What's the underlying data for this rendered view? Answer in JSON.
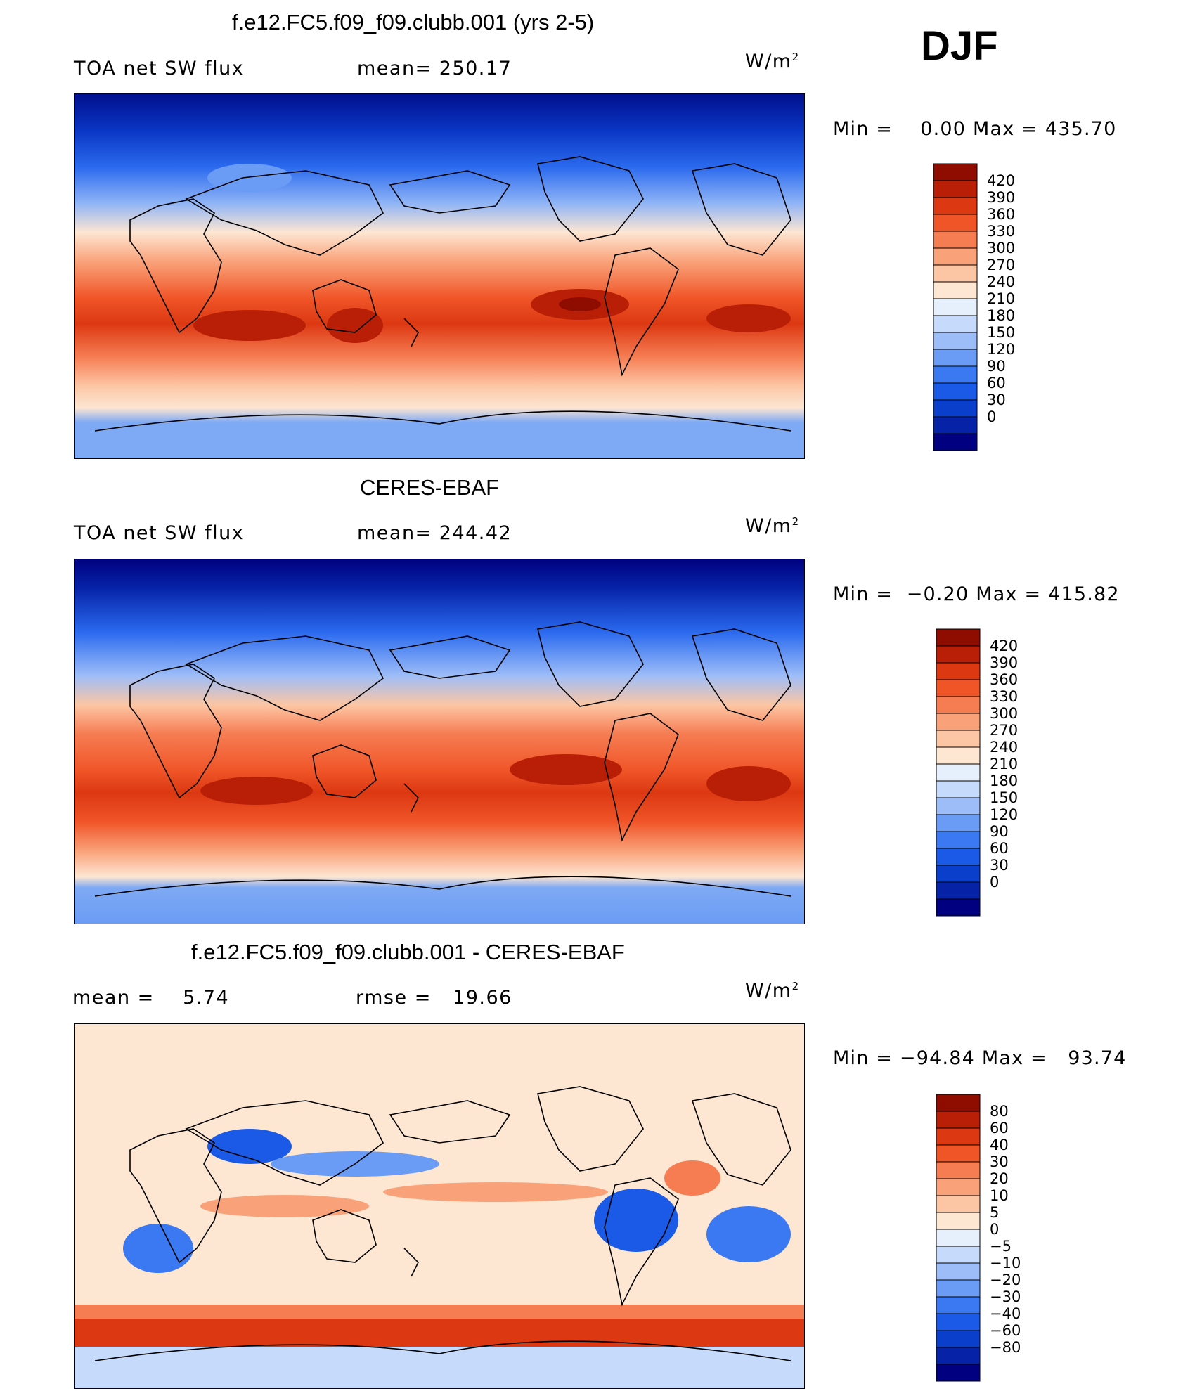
{
  "season": "DJF",
  "colors": {
    "abs_scale": [
      "#000080",
      "#0623a8",
      "#0a3fcc",
      "#1a5ae6",
      "#3a79f2",
      "#6a9cf5",
      "#9dbdf8",
      "#c6dbfb",
      "#e6f0fd",
      "#fde6d2",
      "#fcc6a4",
      "#f9a27a",
      "#f67c52",
      "#f05528",
      "#dc3812",
      "#b81f06",
      "#8e0b00"
    ],
    "diff_scale": [
      "#000080",
      "#0623a8",
      "#0a3fcc",
      "#1a5ae6",
      "#3a79f2",
      "#6a9cf5",
      "#9dbdf8",
      "#c6dbfb",
      "#e6f0fd",
      "#fde6d2",
      "#fcc6a4",
      "#f9a27a",
      "#f67c52",
      "#f05528",
      "#dc3812",
      "#b81f06",
      "#8e0b00"
    ]
  },
  "panels": [
    {
      "title": "f.e12.FC5.f09_f09.clubb.001 (yrs 2-5)",
      "left_label": "TOA net SW flux",
      "mid_label": "mean= 250.17",
      "unit": "W/m",
      "unit_exp": "2",
      "min_label": "Min =",
      "min_value": "0.00",
      "max_label": "Max =",
      "max_value": "435.70",
      "colorbar_labels": [
        "420",
        "390",
        "360",
        "330",
        "300",
        "270",
        "240",
        "210",
        "180",
        "150",
        "120",
        "90",
        "60",
        "30",
        "0"
      ]
    },
    {
      "title": "CERES-EBAF",
      "left_label": "TOA net SW flux",
      "mid_label": "mean= 244.42",
      "unit": "W/m",
      "unit_exp": "2",
      "min_label": "Min =",
      "min_value": "−0.20",
      "max_label": "Max =",
      "max_value": "415.82",
      "colorbar_labels": [
        "420",
        "390",
        "360",
        "330",
        "300",
        "270",
        "240",
        "210",
        "180",
        "150",
        "120",
        "90",
        "60",
        "30",
        "0"
      ]
    },
    {
      "title": "f.e12.FC5.f09_f09.clubb.001 - CERES-EBAF",
      "left_label": "mean =    5.74",
      "mid_label": "rmse =   19.66",
      "unit": "W/m",
      "unit_exp": "2",
      "min_label": "Min =",
      "min_value": "−94.84",
      "max_label": "Max =",
      "max_value": "93.74",
      "colorbar_labels": [
        "80",
        "60",
        "40",
        "30",
        "20",
        "10",
        "5",
        "0",
        "−5",
        "−10",
        "−20",
        "−30",
        "−40",
        "−60",
        "−80"
      ]
    }
  ]
}
